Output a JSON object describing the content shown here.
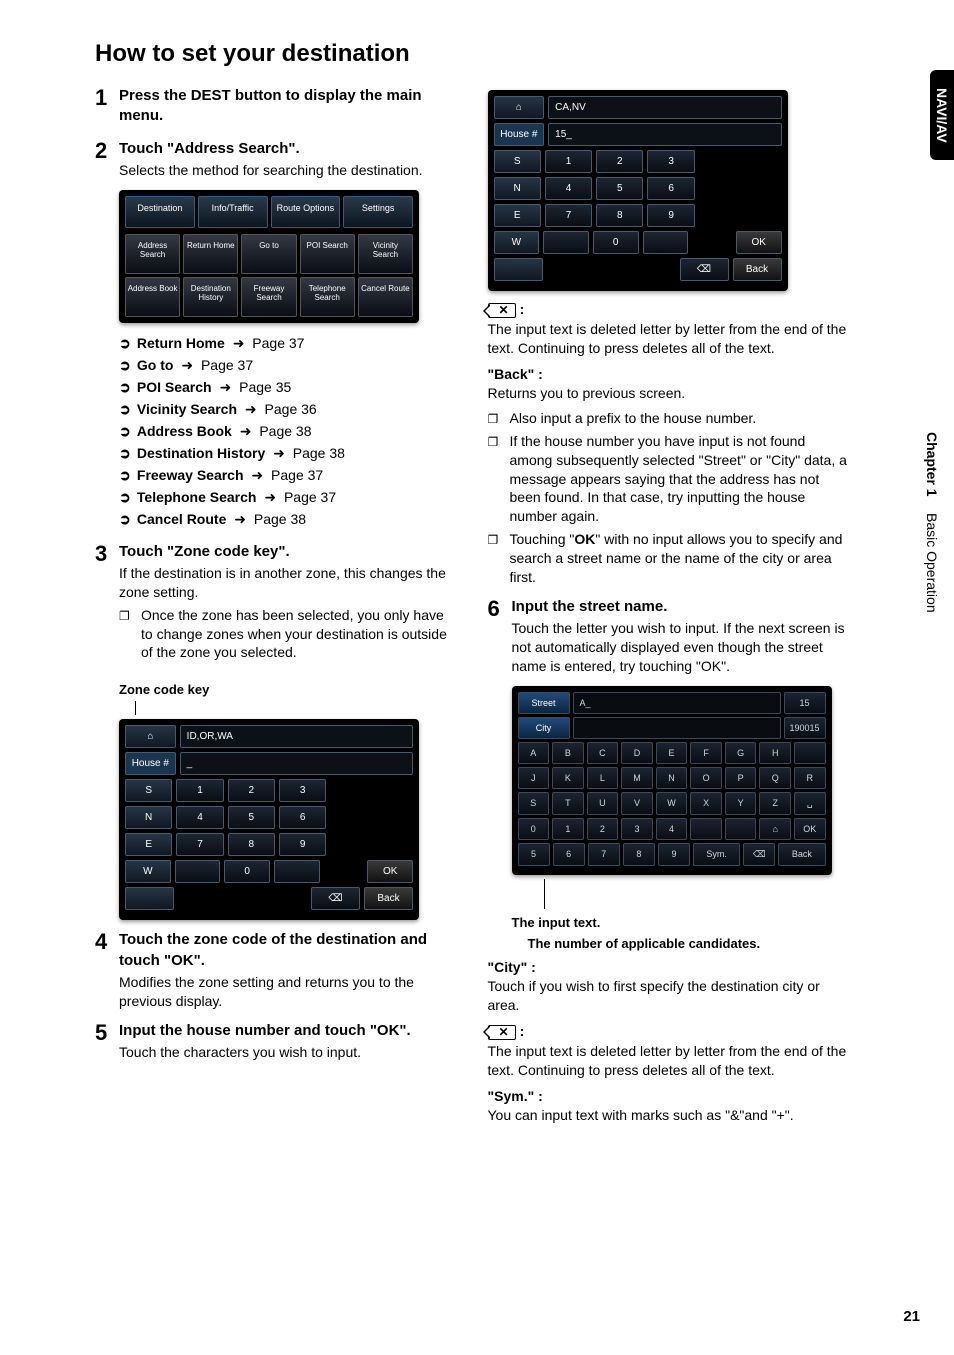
{
  "title": "How to set your destination",
  "sidebar": {
    "tab": "NAVI/AV",
    "chapter": "Chapter 1",
    "section": "Basic Operation"
  },
  "pageNumber": "21",
  "left": {
    "step1": {
      "num": "1",
      "head": "Press the DEST button to display the main menu."
    },
    "step2": {
      "num": "2",
      "head": "Touch \"Address Search\".",
      "desc": "Selects the method for searching the destination."
    },
    "menuTabs": [
      "Destination",
      "Info/Traffic",
      "Route Options",
      "Settings"
    ],
    "menuGrid": [
      "Address Search",
      "Return Home",
      "Go to",
      "POI Search",
      "Vicinity Search",
      "Address Book",
      "Destination History",
      "Freeway Search",
      "Telephone Search",
      "Cancel Route"
    ],
    "refs": [
      {
        "label": "Return Home",
        "page": "Page 37"
      },
      {
        "label": "Go to",
        "page": "Page 37"
      },
      {
        "label": "POI Search",
        "page": "Page 35"
      },
      {
        "label": "Vicinity Search",
        "page": "Page 36"
      },
      {
        "label": "Address Book",
        "page": "Page 38"
      },
      {
        "label": "Destination History",
        "page": "Page 38"
      },
      {
        "label": "Freeway Search",
        "page": "Page 37"
      },
      {
        "label": "Telephone Search",
        "page": "Page 37"
      },
      {
        "label": "Cancel Route",
        "page": "Page 38"
      }
    ],
    "step3": {
      "num": "3",
      "head": "Touch \"Zone code key\".",
      "desc": "If the destination is in another zone, this changes the zone setting.",
      "note": "Once the zone has been selected, you only have to change zones when your destination is outside of the zone you selected."
    },
    "zoneKeyLabel": "Zone code key",
    "numpad1": {
      "header_code": "ID,OR,WA",
      "house": "House #",
      "inputVal": "_",
      "sideKeys": [
        "S",
        "N",
        "E",
        "W",
        ""
      ],
      "okLabel": "OK",
      "backLabel": "Back",
      "rows": [
        [
          "1",
          "2",
          "3"
        ],
        [
          "4",
          "5",
          "6"
        ],
        [
          "7",
          "8",
          "9"
        ],
        [
          "",
          "0",
          ""
        ],
        [
          "",
          "",
          "⌫"
        ]
      ]
    },
    "step4": {
      "num": "4",
      "head": "Touch the zone code of the destination and touch \"OK\".",
      "desc": "Modifies the zone setting and returns you to the previous display."
    },
    "step5": {
      "num": "5",
      "head": "Input the house number and touch \"OK\".",
      "desc": "Touch the characters you wish to input."
    }
  },
  "right": {
    "numpad2": {
      "header_code": "CA,NV",
      "house": "House #",
      "inputVal": "15_",
      "sideKeys": [
        "S",
        "N",
        "E",
        "W",
        ""
      ],
      "okLabel": "OK",
      "backLabel": "Back",
      "rows": [
        [
          "1",
          "2",
          "3"
        ],
        [
          "4",
          "5",
          "6"
        ],
        [
          "7",
          "8",
          "9"
        ],
        [
          "",
          "0",
          ""
        ],
        [
          "",
          "",
          "⌫"
        ]
      ]
    },
    "bsLabel": ":",
    "bsDesc": "The input text is deleted letter by letter from the end of the text. Continuing to press deletes all of the text.",
    "backHead": "\"Back\" :",
    "backDesc": "Returns you to previous screen.",
    "notes5": [
      "Also input a prefix to the house number.",
      "If the house number you have input is not found among subsequently selected \"Street\" or \"City\" data, a message appears saying that the address has not been found. In that case, try inputting the house number again.",
      "Touching \"OK\" with no input allows you to specify and search a street name or the name of the city or area first."
    ],
    "step6": {
      "num": "6",
      "head": "Input the street name.",
      "desc": "Touch the letter you wish to input. If the next screen is not automatically displayed even though the street name is entered, try touching \"OK\"."
    },
    "kbd": {
      "rowsTop": [
        {
          "tag": "Street",
          "input": "A_",
          "count": "15"
        },
        {
          "tag": "City",
          "input": "",
          "count": "190015"
        }
      ],
      "letters": [
        [
          "A",
          "B",
          "C",
          "D",
          "E",
          "F",
          "G",
          "H",
          ""
        ],
        [
          "J",
          "K",
          "L",
          "M",
          "N",
          "O",
          "P",
          "Q",
          "R"
        ],
        [
          "S",
          "T",
          "U",
          "V",
          "W",
          "X",
          "Y",
          "Z",
          "␣"
        ],
        [
          "0",
          "1",
          "2",
          "3",
          "4",
          "",
          "",
          "⌂",
          "OK"
        ],
        [
          "5",
          "6",
          "7",
          "8",
          "9",
          "Sym.",
          "⌫",
          "Back"
        ]
      ]
    },
    "callout1": "The input text.",
    "callout2": "The number of applicable candidates.",
    "cityHead": "\"City\" :",
    "cityDesc": "Touch if you wish to first specify the destination city or area.",
    "bs2Desc": "The input text is deleted letter by letter from the end of the text. Continuing to press deletes all of the text.",
    "symHead": "\"Sym.\" :",
    "symDesc": "You can input text with marks such as \"&\"and \"+\"."
  },
  "arrow": "➜",
  "refBullet": "➲"
}
